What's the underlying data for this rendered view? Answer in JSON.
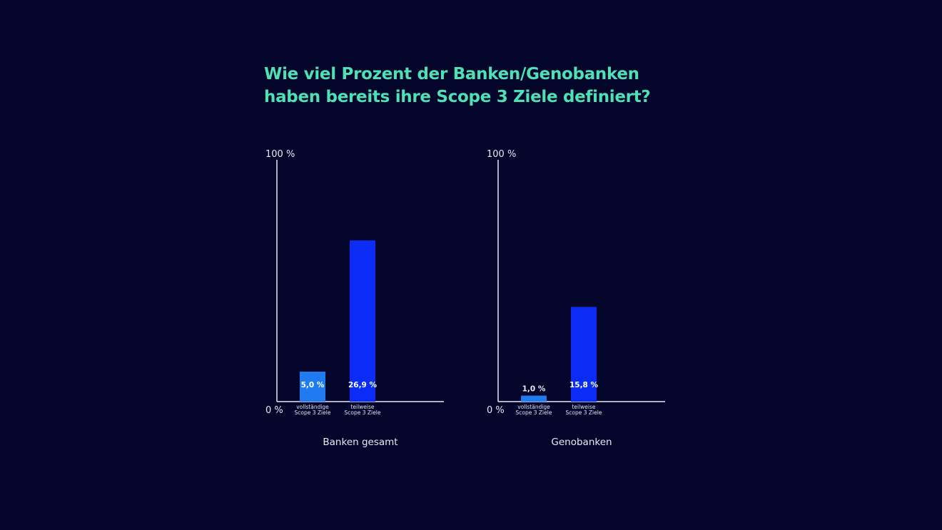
{
  "title_lines": [
    "Wie viel Prozent der Banken/Genobanken",
    "haben bereits ihre Scope 3 Ziele definiert?"
  ],
  "colors": {
    "background": "#03052a",
    "title": "#4fe0b4",
    "axis": "#e8eaf6",
    "bar_full": "#1e7bf0",
    "bar_partial": "#0a2cf5"
  },
  "chart_data": [
    {
      "type": "bar",
      "xlabel": "Banken gesamt",
      "y_top_label": "100 %",
      "y_bottom_label": "0 %",
      "ylim": [
        0,
        100
      ],
      "categories": [
        [
          "vollständige",
          "Scope 3 Ziele"
        ],
        [
          "teilweise",
          "Scope 3 Ziele"
        ]
      ],
      "values": [
        5.0,
        26.9
      ],
      "value_labels": [
        "5,0 %",
        "26,9 %"
      ],
      "colors": [
        "#1e7bf0",
        "#0a2cf5"
      ]
    },
    {
      "type": "bar",
      "xlabel": "Genobanken",
      "y_top_label": "100 %",
      "y_bottom_label": "0 %",
      "ylim": [
        0,
        100
      ],
      "categories": [
        [
          "vollständige",
          "Scope 3 Ziele"
        ],
        [
          "teilweise",
          "Scope 3 Ziele"
        ]
      ],
      "values": [
        1.0,
        15.8
      ],
      "value_labels": [
        "1,0 %",
        "15,8 %"
      ],
      "colors": [
        "#1e7bf0",
        "#0a2cf5"
      ]
    }
  ]
}
